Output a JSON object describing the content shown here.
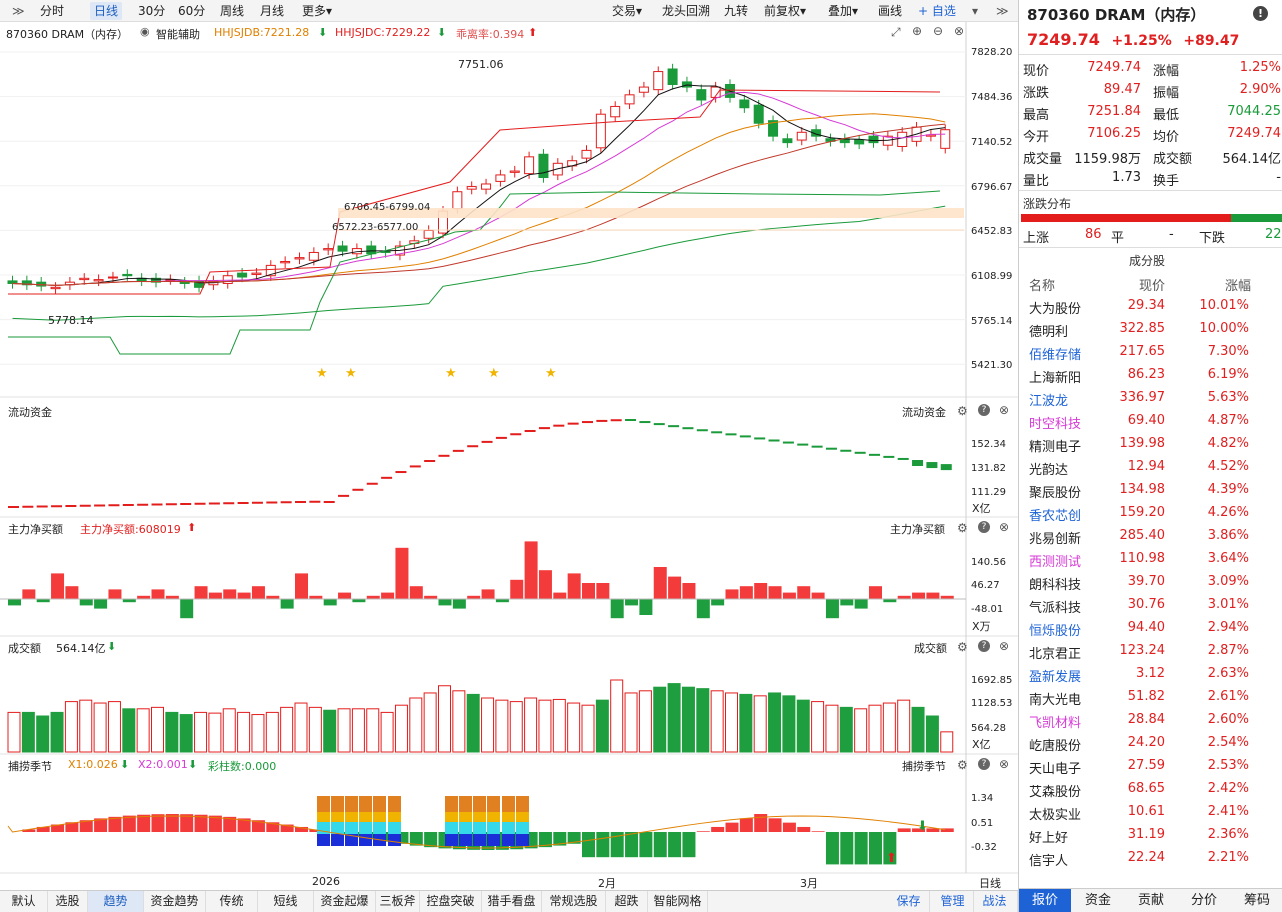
{
  "toolbar": {
    "items": [
      "分时",
      "日线",
      "30分",
      "60分",
      "周线",
      "月线",
      "更多▾"
    ],
    "active": 1,
    "right_items": [
      "交易▾",
      "龙头回溯",
      "九转",
      "前复权▾",
      "叠加▾",
      "画线"
    ],
    "zixuan": "+ 自选",
    "more_arrow": "▾",
    "expand": "≫"
  },
  "main_header": {
    "symbol": "870360 DRAM（内存）",
    "assist": "智能辅助",
    "sjdb": "HHJSJDB:7221.28",
    "sjdc": "HHJSJDC:7229.22",
    "ratio": "乖离率:0.394"
  },
  "price_axis": [
    "7828.20",
    "7484.36",
    "7140.52",
    "6796.67",
    "6452.83",
    "6108.99",
    "5765.14",
    "5421.30"
  ],
  "annotations": {
    "high": "7751.06",
    "low": "5778.14",
    "z1": "6706.45-6799.04",
    "z2": "6572.23-6577.00"
  },
  "flow": {
    "title": "流动资金",
    "title_r": "流动资金",
    "ticks": [
      "152.34",
      "131.82",
      "111.29"
    ],
    "unit": "X亿"
  },
  "net": {
    "title": "主力净买额",
    "value": "主力净买额:608019",
    "title_r": "主力净买额",
    "ticks": [
      "140.56",
      "46.27",
      "-48.01"
    ],
    "unit": "X万"
  },
  "vol": {
    "title": "成交额",
    "value": "564.14亿",
    "title_r": "成交额",
    "ticks": [
      "1692.85",
      "1128.53",
      "564.28"
    ],
    "unit": "X亿"
  },
  "season": {
    "title": "捕捞季节",
    "x1": "X1:0.026",
    "x2": "X2:0.001",
    "bars": "彩柱数:0.000",
    "title_r": "捕捞季节",
    "ticks": [
      "1.34",
      "0.51",
      "-0.32"
    ]
  },
  "dates": [
    "2026",
    "2月",
    "3月"
  ],
  "date_mode": "日线",
  "bottom_tabs": [
    "默认",
    "选股",
    "趋势",
    "资金趋势",
    "传统",
    "短线",
    "资金起爆",
    "三板斧",
    "控盘突破",
    "猎手看盘",
    "常规选股",
    "超跌",
    "智能网格"
  ],
  "bottom_active": 2,
  "bottom_right": [
    "保存",
    "管理",
    "战法"
  ],
  "right": {
    "title": "870360 DRAM（内存）",
    "price": "7249.74",
    "chg_pct": "+1.25%",
    "chg": "+89.47",
    "quote": [
      [
        "现价",
        "7249.74",
        "涨幅",
        "1.25%"
      ],
      [
        "涨跌",
        "89.47",
        "振幅",
        "2.90%"
      ],
      [
        "最高",
        "7251.84",
        "最低",
        "7044.25"
      ],
      [
        "今开",
        "7106.25",
        "均价",
        "7249.74"
      ],
      [
        "成交量",
        "1159.98万",
        "成交额",
        "564.14亿"
      ],
      [
        "量比",
        "1.73",
        "换手",
        "-"
      ]
    ],
    "dist_title": "涨跌分布",
    "up_label": "上涨",
    "up": "86",
    "flat_label": "平",
    "flat": "-",
    "down_label": "下跌",
    "down": "22",
    "comp_title": "成分股",
    "cols": [
      "名称",
      "现价",
      "涨幅"
    ],
    "stocks": [
      [
        "大为股份",
        "29.34",
        "10.01%",
        "k"
      ],
      [
        "德明利",
        "322.85",
        "10.00%",
        "k"
      ],
      [
        "佰维存储",
        "217.65",
        "7.30%",
        "b"
      ],
      [
        "上海新阳",
        "86.23",
        "6.19%",
        "k"
      ],
      [
        "江波龙",
        "336.97",
        "5.63%",
        "b"
      ],
      [
        "时空科技",
        "69.40",
        "4.87%",
        "m"
      ],
      [
        "精测电子",
        "139.98",
        "4.82%",
        "k"
      ],
      [
        "光韵达",
        "12.94",
        "4.52%",
        "k"
      ],
      [
        "聚辰股份",
        "134.98",
        "4.39%",
        "k"
      ],
      [
        "香农芯创",
        "159.20",
        "4.26%",
        "b"
      ],
      [
        "兆易创新",
        "285.40",
        "3.86%",
        "k"
      ],
      [
        "西测测试",
        "110.98",
        "3.64%",
        "m"
      ],
      [
        "朗科科技",
        "39.70",
        "3.09%",
        "k"
      ],
      [
        "气派科技",
        "30.76",
        "3.01%",
        "k"
      ],
      [
        "恒烁股份",
        "94.40",
        "2.94%",
        "b"
      ],
      [
        "北京君正",
        "123.24",
        "2.87%",
        "k"
      ],
      [
        "盈新发展",
        "3.12",
        "2.63%",
        "b"
      ],
      [
        "南大光电",
        "51.82",
        "2.61%",
        "k"
      ],
      [
        "飞凯材料",
        "28.84",
        "2.60%",
        "m"
      ],
      [
        "屹唐股份",
        "24.20",
        "2.54%",
        "k"
      ],
      [
        "天山电子",
        "27.59",
        "2.53%",
        "k"
      ],
      [
        "艾森股份",
        "68.65",
        "2.42%",
        "k"
      ],
      [
        "太极实业",
        "10.61",
        "2.41%",
        "k"
      ],
      [
        "好上好",
        "31.19",
        "2.36%",
        "k"
      ],
      [
        "信宇人",
        "22.24",
        "2.21%",
        "k"
      ]
    ],
    "tabs": [
      "报价",
      "资金",
      "贡献",
      "分价",
      "筹码"
    ]
  }
}
